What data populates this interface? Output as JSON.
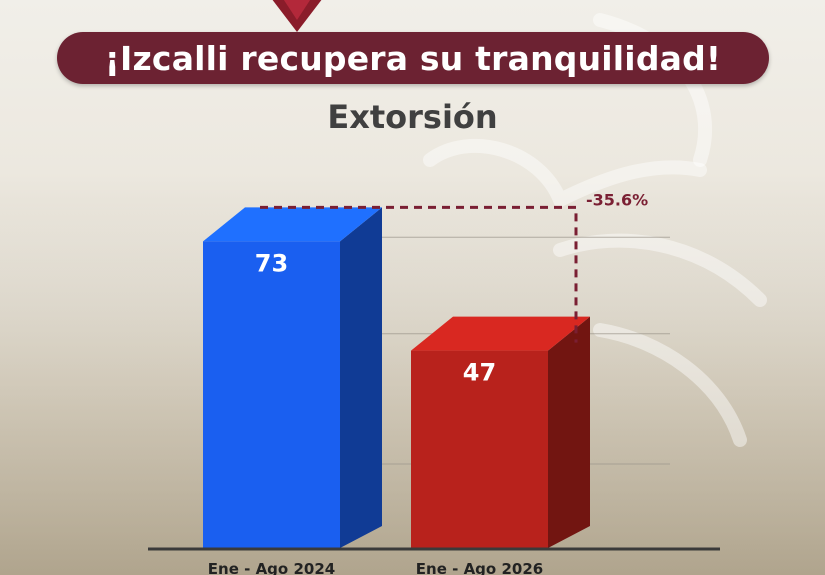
{
  "header": {
    "title": "¡Izcalli recupera su tranquilidad!"
  },
  "chart_data": {
    "type": "bar",
    "title": "Extorsión",
    "categories": [
      "Ene - Ago 2024",
      "Ene - Ago 2026"
    ],
    "values": [
      73,
      47
    ],
    "value_labels": [
      "73",
      "47"
    ],
    "ylim": [
      0,
      100
    ],
    "grid": true,
    "annotation": "-35.6%",
    "bar_colors": [
      "#1a5ff0",
      "#b8221c"
    ]
  },
  "colors": {
    "banner": "#6c2232",
    "annotation": "#7a1f33",
    "bar_1": "#1a5ff0",
    "bar_2": "#b8221c"
  }
}
